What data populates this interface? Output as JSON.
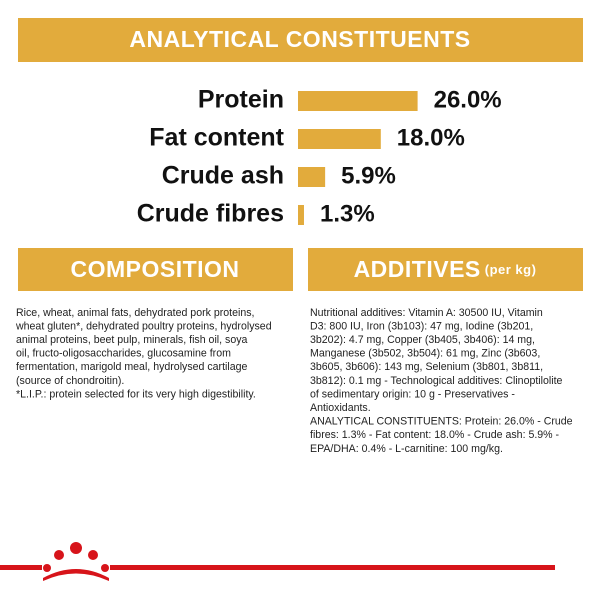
{
  "header": {
    "title": "ANALYTICAL CONSTITUENTS"
  },
  "chart_data": {
    "type": "bar",
    "orientation": "horizontal",
    "color": "#e2ab3c",
    "categories": [
      "Protein",
      "Fat content",
      "Crude ash",
      "Crude fibres"
    ],
    "values": [
      26.0,
      18.0,
      5.9,
      1.3
    ],
    "value_labels": [
      "26.0%",
      "18.0%",
      "5.9%",
      "1.3%"
    ]
  },
  "composition": {
    "title": "COMPOSITION",
    "lines": [
      "Rice, wheat, animal fats, dehydrated pork proteins,",
      "wheat gluten*, dehydrated poultry proteins, hydrolysed",
      "animal proteins, beet pulp, minerals, fish oil, soya",
      "oil, fructo-oligosaccharides, glucosamine from",
      "fermentation, marigold meal, hydrolysed cartilage",
      "(source of chondroitin).",
      "*L.I.P.: protein selected for its very high digestibility."
    ]
  },
  "additives": {
    "title": "ADDITIVES",
    "title_note": "(per kg)",
    "lines": [
      "Nutritional additives: Vitamin A: 30500 IU, Vitamin",
      "D3: 800 IU, Iron (3b103): 47 mg, Iodine (3b201,",
      "3b202): 4.7 mg, Copper (3b405, 3b406): 14 mg,",
      "Manganese (3b502, 3b504): 61 mg, Zinc (3b603,",
      "3b605, 3b606): 143 mg, Selenium (3b801, 3b811,",
      "3b812): 0.1 mg - Technological additives: Clinoptilolite",
      "of sedimentary origin: 10 g - Preservatives -",
      "Antioxidants.",
      "ANALYTICAL CONSTITUENTS: Protein: 26.0% - Crude",
      "fibres: 1.3% - Fat content: 18.0% - Crude ash: 5.9% -",
      "EPA/DHA: 0.4% - L-carnitine: 100 mg/kg."
    ]
  }
}
